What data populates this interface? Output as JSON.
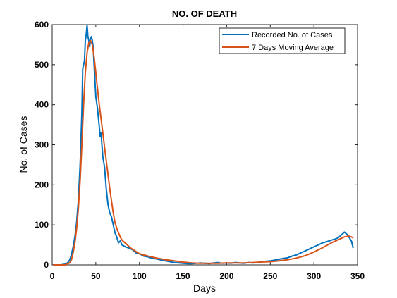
{
  "chart_data": {
    "type": "line",
    "title": "NO. OF DEATH",
    "xlabel": "Days",
    "ylabel": "No. of Cases",
    "xlim": [
      0,
      350
    ],
    "ylim": [
      0,
      600
    ],
    "xticks": [
      0,
      50,
      100,
      150,
      200,
      250,
      300,
      350
    ],
    "yticks": [
      0,
      100,
      200,
      300,
      400,
      500,
      600
    ],
    "legend_position": "top-right",
    "grid": false,
    "series": [
      {
        "name": "Recorded No. of Cases",
        "color": "#0072BD",
        "x": [
          1,
          10,
          15,
          18,
          20,
          22,
          24,
          26,
          28,
          30,
          32,
          34,
          35,
          37,
          38,
          39,
          40,
          41,
          42,
          43,
          44,
          45,
          46,
          47,
          48,
          50,
          52,
          54,
          55,
          56,
          57,
          58,
          60,
          62,
          64,
          66,
          68,
          70,
          72,
          74,
          76,
          78,
          80,
          84,
          88,
          92,
          96,
          100,
          105,
          110,
          115,
          120,
          125,
          130,
          135,
          140,
          145,
          150,
          155,
          160,
          165,
          170,
          175,
          180,
          185,
          190,
          195,
          200,
          205,
          210,
          215,
          220,
          225,
          230,
          235,
          240,
          245,
          250,
          255,
          260,
          265,
          270,
          275,
          280,
          285,
          290,
          295,
          300,
          305,
          310,
          315,
          320,
          325,
          328,
          330,
          333,
          335,
          338,
          340,
          343,
          345
        ],
        "y": [
          0,
          0,
          2,
          6,
          12,
          25,
          45,
          70,
          105,
          160,
          250,
          380,
          490,
          510,
          560,
          575,
          598,
          570,
          560,
          545,
          565,
          570,
          560,
          545,
          500,
          420,
          390,
          345,
          320,
          330,
          300,
          270,
          245,
          190,
          150,
          130,
          120,
          100,
          80,
          70,
          55,
          60,
          50,
          45,
          42,
          38,
          30,
          28,
          22,
          20,
          16,
          15,
          12,
          10,
          8,
          6,
          5,
          4,
          3,
          3,
          4,
          5,
          4,
          3,
          5,
          6,
          4,
          5,
          4,
          6,
          5,
          4,
          6,
          5,
          6,
          8,
          9,
          10,
          12,
          14,
          16,
          18,
          22,
          25,
          30,
          35,
          40,
          45,
          50,
          55,
          58,
          62,
          65,
          68,
          72,
          78,
          82,
          76,
          70,
          60,
          42
        ]
      },
      {
        "name": "7 Days Moving Average",
        "color": "#D95319",
        "x": [
          1,
          15,
          20,
          22,
          24,
          26,
          28,
          30,
          32,
          34,
          36,
          38,
          40,
          42,
          44,
          46,
          48,
          50,
          52,
          54,
          56,
          58,
          60,
          62,
          64,
          66,
          68,
          70,
          72,
          75,
          78,
          80,
          85,
          90,
          95,
          100,
          110,
          120,
          130,
          140,
          150,
          160,
          170,
          180,
          190,
          200,
          210,
          220,
          230,
          240,
          250,
          260,
          270,
          280,
          290,
          300,
          310,
          320,
          330,
          335,
          340,
          343,
          345
        ],
        "y": [
          0,
          0,
          5,
          12,
          30,
          55,
          90,
          140,
          210,
          300,
          400,
          480,
          530,
          555,
          560,
          550,
          520,
          480,
          440,
          400,
          365,
          330,
          295,
          260,
          225,
          190,
          160,
          130,
          105,
          85,
          70,
          62,
          52,
          42,
          35,
          28,
          22,
          17,
          13,
          10,
          7,
          5,
          4,
          4,
          4,
          5,
          5,
          5,
          6,
          7,
          8,
          10,
          13,
          17,
          23,
          32,
          43,
          55,
          65,
          70,
          72,
          70,
          67
        ]
      }
    ]
  }
}
